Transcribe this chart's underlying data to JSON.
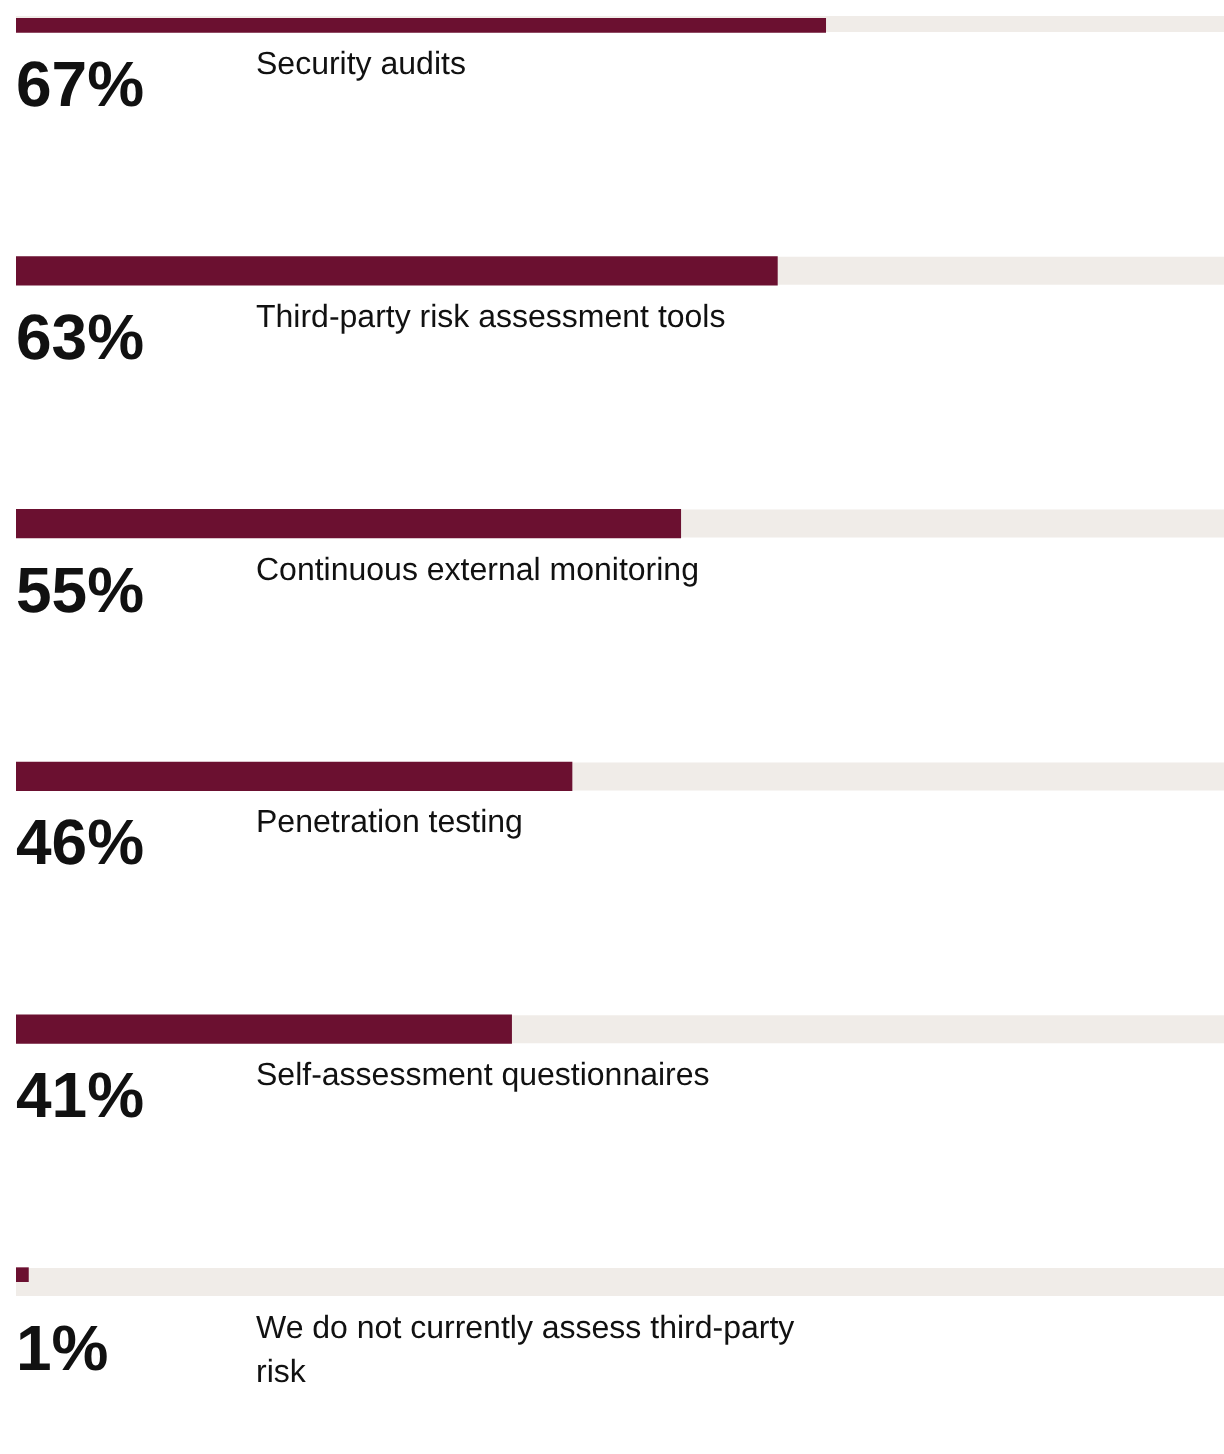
{
  "chart_data": {
    "type": "bar",
    "orientation": "horizontal",
    "categories": [
      "Security audits",
      "Third-party risk assessment tools",
      "Continuous external monitoring",
      "Penetration testing",
      "Self-assessment questionnaires",
      "We do not currently assess third-party risk"
    ],
    "values": [
      67,
      63,
      55,
      46,
      41,
      1
    ],
    "value_labels": [
      "67%",
      "63%",
      "55%",
      "46%",
      "41%",
      "1%"
    ],
    "color": "#6b1030",
    "xlim": [
      0,
      100
    ],
    "tick_labels": false
  }
}
